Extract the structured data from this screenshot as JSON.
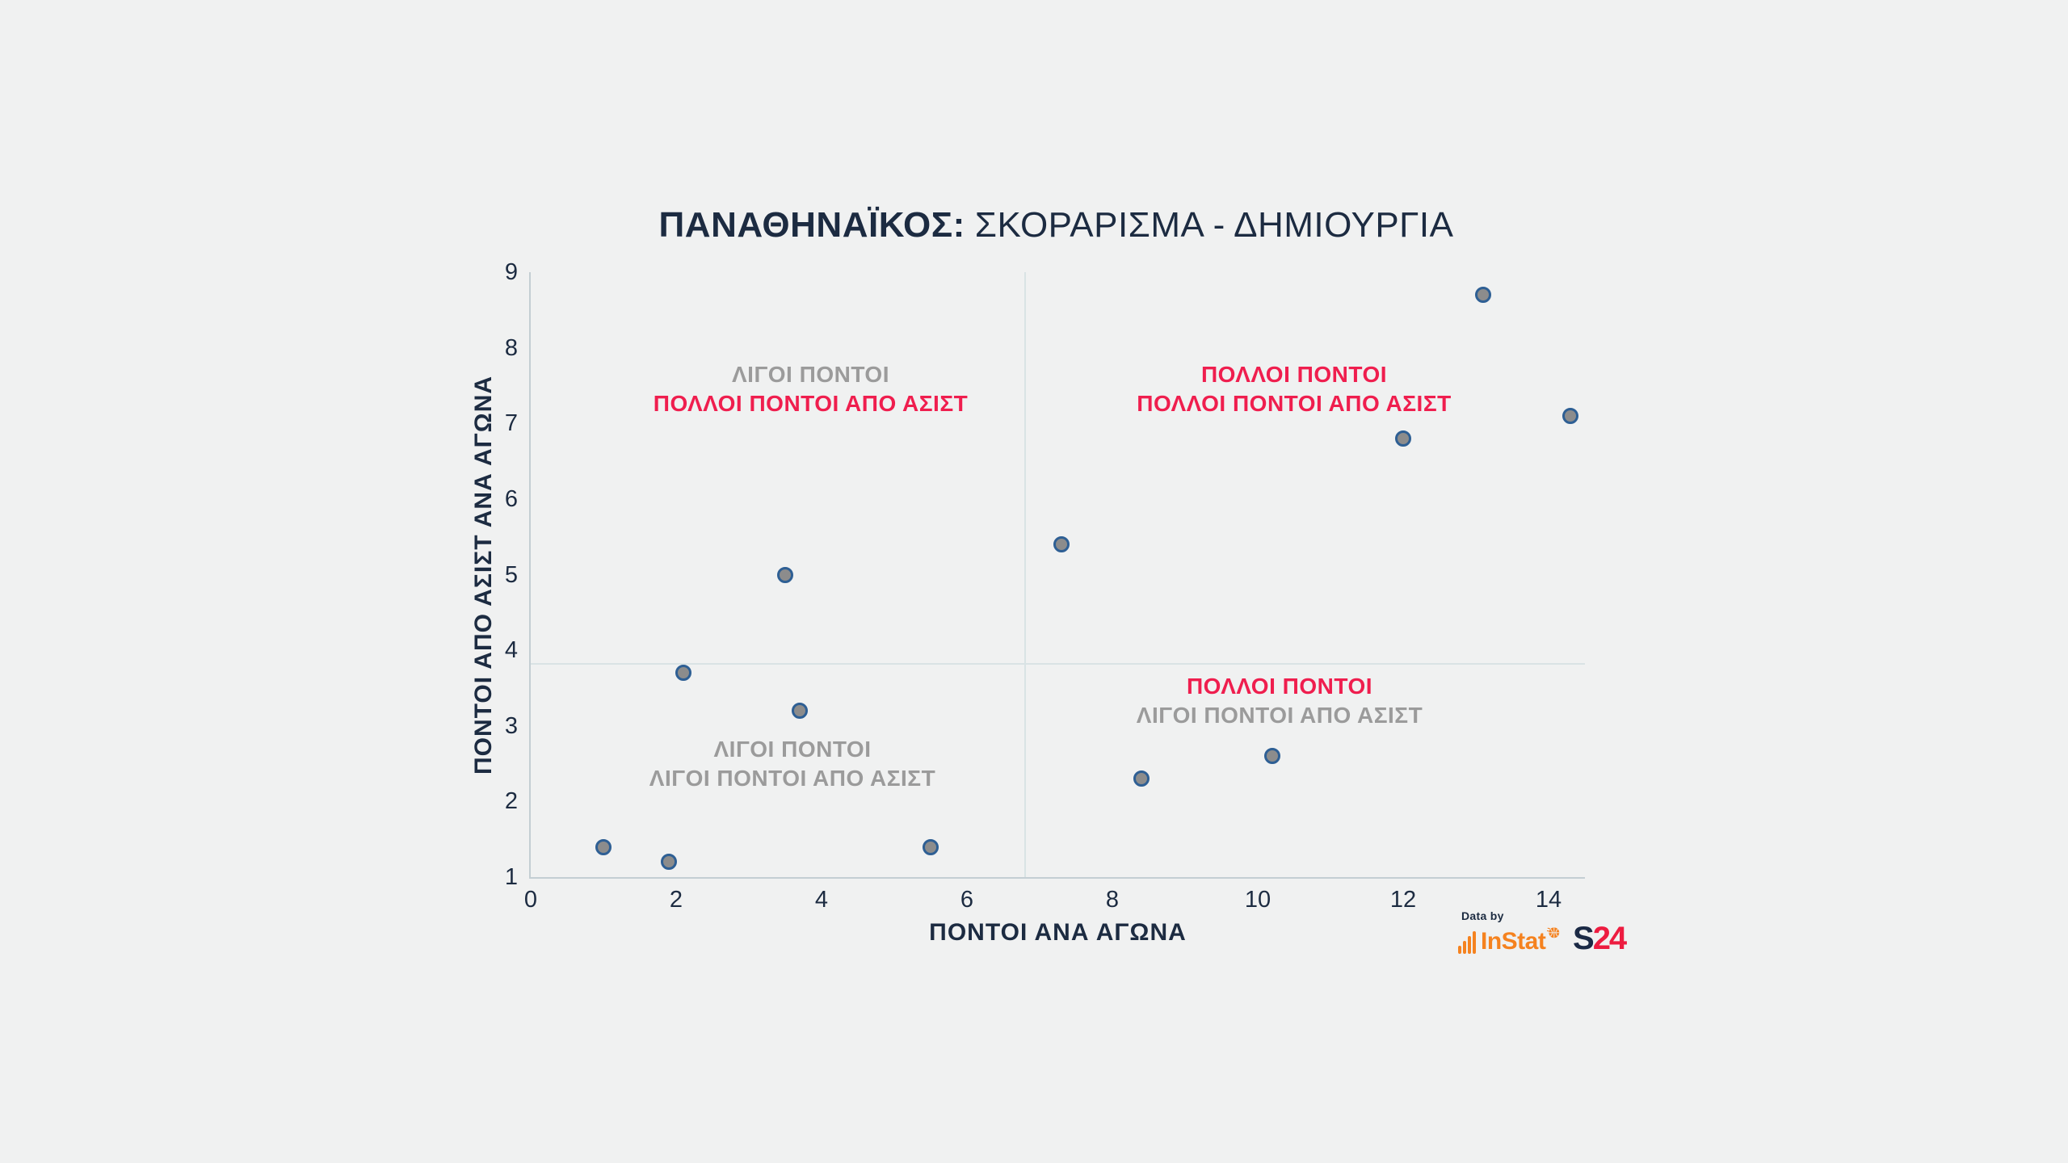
{
  "title": {
    "bold": "ΠΑΝΑΘΗΝΑΪΚΟΣ:",
    "regular": "ΣΚΟΡΑΡΙΣΜΑ - ΔΗΜΙΟΥΡΓΙΑ"
  },
  "colors": {
    "background": "#f0f1f1",
    "navy": "#1c2b41",
    "red": "#ef1e4e",
    "gray_label": "#9b9b9b",
    "point_fill": "#8c8c8c",
    "point_stroke": "#2e5f94",
    "axis_line": "#c4ced3",
    "divider_line": "#d9e3e5",
    "instat_orange": "#f5821f",
    "s24_navy": "#1b2a45",
    "s24_red": "#ed1c40"
  },
  "chart_data": {
    "type": "scatter",
    "title": "ΠΑΝΑΘΗΝΑΪΚΟΣ: ΣΚΟΡΑΡΙΣΜΑ - ΔΗΜΙΟΥΡΓΙΑ",
    "xlabel": "ΠΟΝΤΟΙ ΑΝΑ ΑΓΩΝΑ",
    "ylabel": "ΠΟΝΤΟΙ ΑΠΟ ΑΣΙΣΤ ΑΝΑ ΑΓΩΝΑ",
    "xlim": [
      0,
      14.5
    ],
    "ylim": [
      1,
      9
    ],
    "xticks": [
      0,
      2,
      4,
      6,
      8,
      10,
      12,
      14
    ],
    "yticks": [
      1,
      2,
      3,
      4,
      5,
      6,
      7,
      8,
      9
    ],
    "grid": false,
    "legend": false,
    "points": [
      [
        1.0,
        1.4
      ],
      [
        1.9,
        1.2
      ],
      [
        2.1,
        3.7
      ],
      [
        3.5,
        5.0
      ],
      [
        3.7,
        3.2
      ],
      [
        5.5,
        1.4
      ],
      [
        7.3,
        5.4
      ],
      [
        8.4,
        2.3
      ],
      [
        10.2,
        2.6
      ],
      [
        12.0,
        6.8
      ],
      [
        13.1,
        8.7
      ],
      [
        14.3,
        7.1
      ]
    ],
    "dividers": {
      "x": 6.8,
      "y": 3.82
    },
    "quadrant_labels": [
      {
        "x": 3.85,
        "y": 7.45,
        "lines": [
          {
            "text": "ΛΙΓΟΙ ΠΟΝΤΟΙ",
            "color": "gray"
          },
          {
            "text": "ΠΟΛΛΟΙ ΠΟΝΤΟΙ ΑΠΟ ΑΣΙΣΤ",
            "color": "red"
          }
        ]
      },
      {
        "x": 10.5,
        "y": 7.45,
        "lines": [
          {
            "text": "ΠΟΛΛΟΙ ΠΟΝΤΟΙ",
            "color": "red"
          },
          {
            "text": "ΠΟΛΛΟΙ ΠΟΝΤΟΙ ΑΠΟ ΑΣΙΣΤ",
            "color": "red"
          }
        ]
      },
      {
        "x": 3.6,
        "y": 2.5,
        "lines": [
          {
            "text": "ΛΙΓΟΙ ΠΟΝΤΟΙ",
            "color": "gray"
          },
          {
            "text": "ΛΙΓΟΙ ΠΟΝΤΟΙ ΑΠΟ ΑΣΙΣΤ",
            "color": "gray"
          }
        ]
      },
      {
        "x": 10.3,
        "y": 3.33,
        "lines": [
          {
            "text": "ΠΟΛΛΟΙ ΠΟΝΤΟΙ",
            "color": "red"
          },
          {
            "text": "ΛΙΓΟΙ ΠΟΝΤΟΙ ΑΠΟ ΑΣΙΣΤ",
            "color": "gray"
          }
        ]
      }
    ]
  },
  "footer": {
    "data_by": "Data by",
    "instat": "InStat",
    "s24_s": "S",
    "s24_24": "24"
  }
}
